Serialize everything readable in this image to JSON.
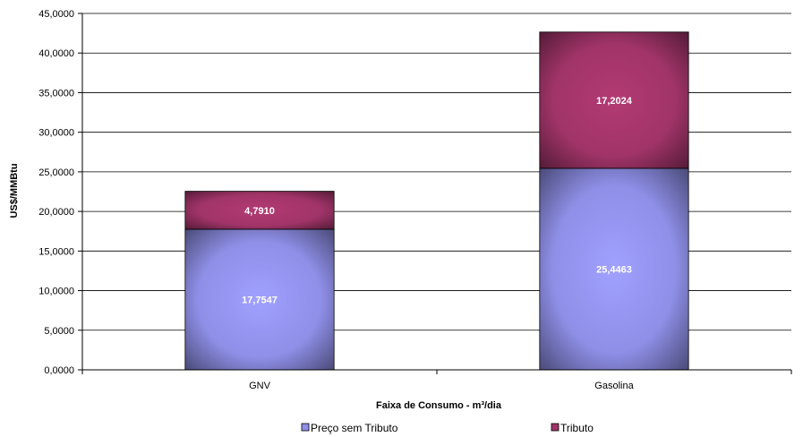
{
  "chart_data": {
    "type": "bar",
    "stacked": true,
    "categories": [
      "GNV",
      "Gasolina"
    ],
    "series": [
      {
        "name": "Preço sem Tributo",
        "values": [
          17.7547,
          25.4463
        ],
        "labels": [
          "17,7547",
          "25,4463"
        ],
        "color": "#8f8fe8"
      },
      {
        "name": "Tributo",
        "values": [
          4.791,
          17.2024
        ],
        "labels": [
          "4,7910",
          "17,2024"
        ],
        "color": "#a03468"
      }
    ],
    "title": "",
    "xlabel": "Faixa de Consumo - m³/dia",
    "ylabel": "US$/MMBtu",
    "ylim": [
      0,
      45
    ],
    "yticks": [
      0,
      5,
      10,
      15,
      20,
      25,
      30,
      35,
      40,
      45
    ],
    "ytick_labels": [
      "0,0000",
      "5,0000",
      "10,0000",
      "15,0000",
      "20,0000",
      "25,0000",
      "30,0000",
      "35,0000",
      "40,0000",
      "45,0000"
    ],
    "grid": true,
    "legend_position": "bottom"
  }
}
